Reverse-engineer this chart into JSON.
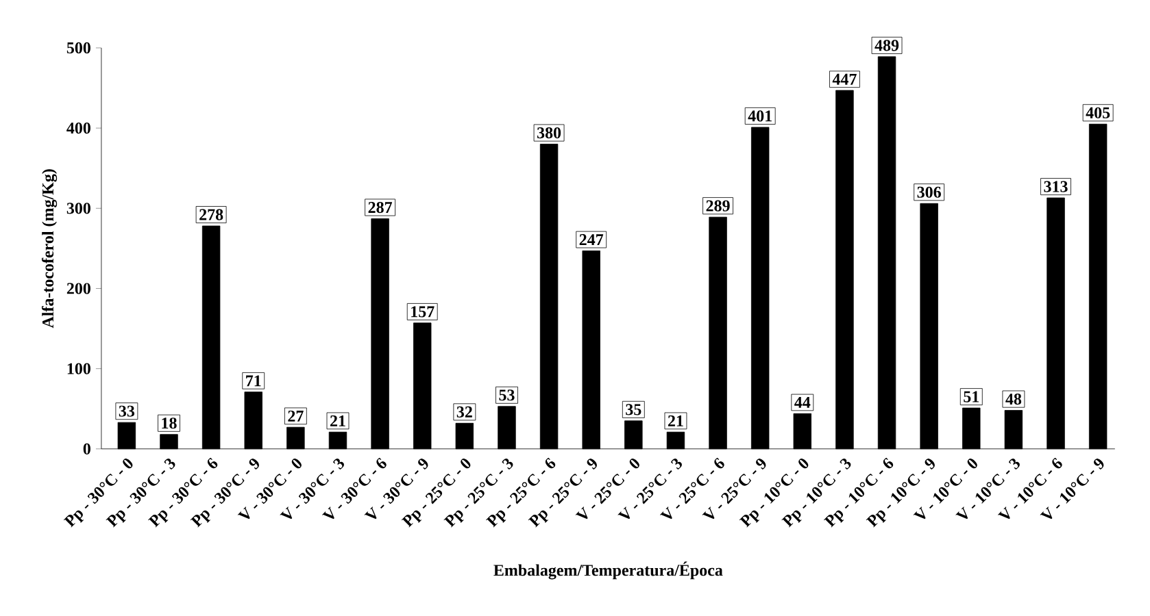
{
  "chart_data": {
    "type": "bar",
    "xlabel": "Embalagem/Temperatura/Época",
    "ylabel": "Alfa-tocoferol (mg/Kg)",
    "categories": [
      "Pp - 30°C - 0",
      "Pp - 30°C - 3",
      "Pp - 30°C - 6",
      "Pp - 30°C - 9",
      "V - 30°C - 0",
      "V - 30°C - 3",
      "V - 30°C - 6",
      "V - 30°C - 9",
      "Pp - 25°C - 0",
      "Pp - 25°C - 3",
      "Pp - 25°C - 6",
      "Pp - 25°C - 9",
      "V - 25°C - 0",
      "V - 25°C - 3",
      "V - 25°C - 6",
      "V - 25°C - 9",
      "Pp - 10°C - 0",
      "Pp - 10°C - 3",
      "Pp - 10°C - 6",
      "Pp - 10°C - 9",
      "V - 10°C - 0",
      "V - 10°C - 3",
      "V - 10°C - 6",
      "V - 10°C - 9"
    ],
    "values": [
      33,
      18,
      278,
      71,
      27,
      21,
      287,
      157,
      32,
      53,
      380,
      247,
      35,
      21,
      289,
      401,
      44,
      447,
      489,
      306,
      51,
      48,
      313,
      405
    ],
    "color": "#000000",
    "data_labels": true,
    "ylim": [
      0,
      500
    ],
    "yticks": [
      0,
      100,
      200,
      300,
      400,
      500
    ],
    "grid": false
  }
}
